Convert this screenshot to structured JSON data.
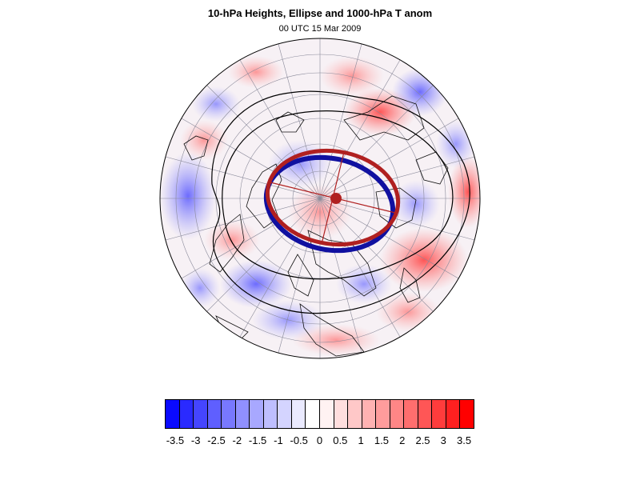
{
  "header": {
    "title": "10-hPa Heights, Ellipse and 1000-hPa T anom",
    "subtitle": "00 UTC 15 Mar 2009"
  },
  "map": {
    "projection": "north-polar-orthographic",
    "field": "1000-hPa temperature anomaly",
    "contour_color": "#000000",
    "ellipse_outer_color": "#1010a0",
    "ellipse_inner_color": "#b02020",
    "center_marker_color": "#b02020"
  },
  "colorbar": {
    "colors": [
      "#0a0aff",
      "#2a2aff",
      "#4545ff",
      "#5f5fff",
      "#7878ff",
      "#9090ff",
      "#a8a8ff",
      "#bebeff",
      "#d4d4ff",
      "#eaeaff",
      "#ffffff",
      "#fff2f2",
      "#ffdede",
      "#ffc8c8",
      "#ffb2b2",
      "#ff9c9c",
      "#ff8686",
      "#ff6e6e",
      "#ff5656",
      "#ff3c3c",
      "#ff2020",
      "#ff0000"
    ],
    "tick_labels": [
      "-3.5",
      "-3",
      "-2.5",
      "-2",
      "-1.5",
      "-1",
      "-0.5",
      "0",
      "0.5",
      "1",
      "1.5",
      "2",
      "2.5",
      "3",
      "3.5"
    ]
  }
}
